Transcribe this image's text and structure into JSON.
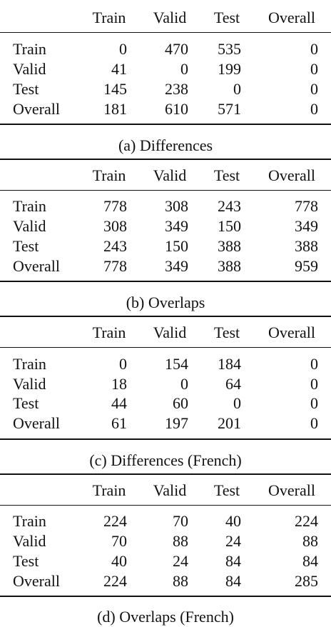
{
  "columns": [
    "Train",
    "Valid",
    "Test",
    "Overall"
  ],
  "tables": [
    {
      "caption": "(a) Differences",
      "rows": [
        {
          "label": "Train",
          "values": [
            "0",
            "470",
            "535",
            "0"
          ]
        },
        {
          "label": "Valid",
          "values": [
            "41",
            "0",
            "199",
            "0"
          ]
        },
        {
          "label": "Test",
          "values": [
            "145",
            "238",
            "0",
            "0"
          ]
        },
        {
          "label": "Overall",
          "values": [
            "181",
            "610",
            "571",
            "0"
          ]
        }
      ]
    },
    {
      "caption": "(b) Overlaps",
      "rows": [
        {
          "label": "Train",
          "values": [
            "778",
            "308",
            "243",
            "778"
          ]
        },
        {
          "label": "Valid",
          "values": [
            "308",
            "349",
            "150",
            "349"
          ]
        },
        {
          "label": "Test",
          "values": [
            "243",
            "150",
            "388",
            "388"
          ]
        },
        {
          "label": "Overall",
          "values": [
            "778",
            "349",
            "388",
            "959"
          ]
        }
      ]
    },
    {
      "caption": "(c) Differences (French)",
      "rows": [
        {
          "label": "Train",
          "values": [
            "0",
            "154",
            "184",
            "0"
          ]
        },
        {
          "label": "Valid",
          "values": [
            "18",
            "0",
            "64",
            "0"
          ]
        },
        {
          "label": "Test",
          "values": [
            "44",
            "60",
            "0",
            "0"
          ]
        },
        {
          "label": "Overall",
          "values": [
            "61",
            "197",
            "201",
            "0"
          ]
        }
      ]
    },
    {
      "caption": "(d) Overlaps (French)",
      "rows": [
        {
          "label": "Train",
          "values": [
            "224",
            "70",
            "40",
            "224"
          ]
        },
        {
          "label": "Valid",
          "values": [
            "70",
            "88",
            "24",
            "88"
          ]
        },
        {
          "label": "Test",
          "values": [
            "40",
            "24",
            "84",
            "84"
          ]
        },
        {
          "label": "Overall",
          "values": [
            "224",
            "88",
            "84",
            "285"
          ]
        }
      ]
    }
  ]
}
